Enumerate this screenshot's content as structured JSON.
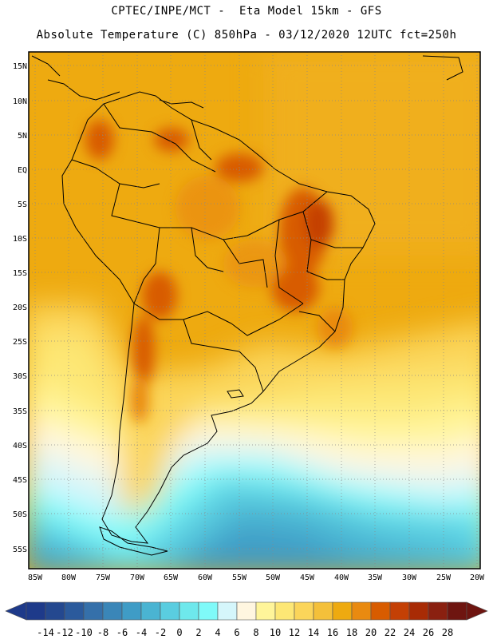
{
  "header": {
    "line1": "CPTEC/INPE/MCT -  Eta Model 15km - GFS",
    "line2": "Absolute Temperature (C) 850hPa - 03/12/2020 12UTC fct=250h"
  },
  "map": {
    "lat_labels": [
      "15N",
      "10N",
      "5N",
      "EQ",
      "5S",
      "10S",
      "15S",
      "20S",
      "25S",
      "30S",
      "35S",
      "40S",
      "45S",
      "50S",
      "55S"
    ],
    "lon_labels": [
      "85W",
      "80W",
      "75W",
      "70W",
      "65W",
      "60W",
      "55W",
      "50W",
      "45W",
      "40W",
      "35W",
      "30W",
      "25W",
      "20W"
    ]
  },
  "colorbar": {
    "labels": [
      "-14",
      "-12",
      "-10",
      "-8",
      "-6",
      "-4",
      "-2",
      "0",
      "2",
      "4",
      "6",
      "8",
      "10",
      "12",
      "14",
      "16",
      "18",
      "20",
      "22",
      "24",
      "26",
      "28"
    ],
    "colors": [
      "#1e3a8a",
      "#24488f",
      "#2b5a9c",
      "#3570aa",
      "#3a86b8",
      "#3f9cc6",
      "#4ab4d2",
      "#5acde0",
      "#6ee8ec",
      "#7ffaf9",
      "#d5f6fb",
      "#fff6e0",
      "#fff59a",
      "#fde775",
      "#fbd55a",
      "#f4c03a",
      "#eeaa10",
      "#e98a10",
      "#d85c00",
      "#c44005",
      "#a82b05",
      "#8a2010",
      "#6e1510"
    ]
  }
}
